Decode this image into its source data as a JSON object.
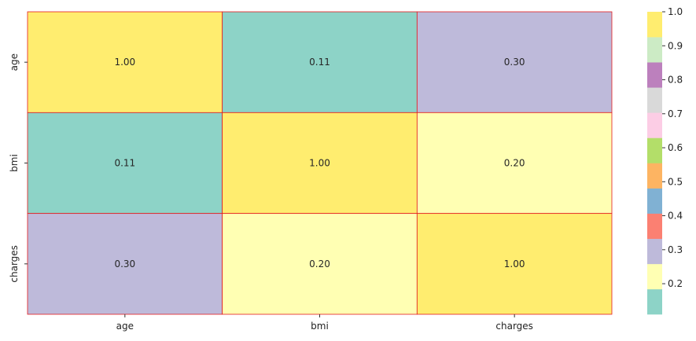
{
  "chart_data": {
    "type": "heatmap",
    "title": "",
    "xlabel": "",
    "ylabel": "",
    "x_labels": [
      "age",
      "bmi",
      "charges"
    ],
    "y_labels": [
      "age",
      "bmi",
      "charges"
    ],
    "values": [
      [
        1.0,
        0.11,
        0.3
      ],
      [
        0.11,
        1.0,
        0.2
      ],
      [
        0.3,
        0.2,
        1.0
      ]
    ],
    "cell_labels": [
      [
        "1.00",
        "0.11",
        "0.30"
      ],
      [
        "0.11",
        "1.00",
        "0.20"
      ],
      [
        "0.30",
        "0.20",
        "1.00"
      ]
    ],
    "annotations": true,
    "grid_line_color": "#e31a1c",
    "colormap": "Set3",
    "colormap_colors": [
      "#8dd3c7",
      "#ffffb3",
      "#bebada",
      "#fb8072",
      "#80b1d3",
      "#fdb462",
      "#b3de69",
      "#fccde5",
      "#d9d9d9",
      "#bc80bd",
      "#ccebc5",
      "#ffed6f"
    ],
    "vmin": 0.11,
    "vmax": 1.0,
    "colorbar": {
      "ticks": [
        0.2,
        0.3,
        0.4,
        0.5,
        0.6,
        0.7,
        0.8,
        0.9,
        1.0
      ],
      "tick_labels": [
        "0.2",
        "0.3",
        "0.4",
        "0.5",
        "0.6",
        "0.7",
        "0.8",
        "0.9",
        "1.0"
      ],
      "placement": "right"
    }
  }
}
